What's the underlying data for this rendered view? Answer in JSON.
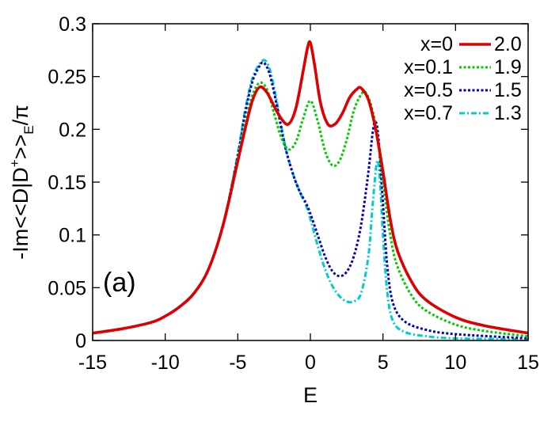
{
  "chart_data": {
    "type": "line",
    "panel_label": "(a)",
    "xlabel": "E",
    "ylabel_parts": {
      "main": "-Im<<D|D",
      "sup": "+",
      "mid": ">>",
      "sub": "E",
      "tail": "/π"
    },
    "xlim": [
      -15,
      15
    ],
    "ylim": [
      0,
      0.3
    ],
    "xticks": [
      -15,
      -10,
      -5,
      0,
      5,
      10,
      15
    ],
    "yticks": [
      0,
      0.05,
      0.1,
      0.15,
      0.2,
      0.25,
      0.3
    ],
    "ytick_labels": [
      "0",
      "0.05",
      "0.1",
      "0.15",
      "0.2",
      "0.25",
      "0.3"
    ],
    "grid": false,
    "legend_position": "top-right",
    "series": [
      {
        "name": "x=0",
        "value_label": "2.0",
        "color": "#dd0000",
        "dash": "solid",
        "points": [
          [
            -15,
            0.007
          ],
          [
            -13,
            0.011
          ],
          [
            -11,
            0.017
          ],
          [
            -10,
            0.023
          ],
          [
            -9,
            0.032
          ],
          [
            -8,
            0.045
          ],
          [
            -7,
            0.068
          ],
          [
            -6,
            0.11
          ],
          [
            -5,
            0.17
          ],
          [
            -4.5,
            0.2
          ],
          [
            -4,
            0.227
          ],
          [
            -3.5,
            0.24
          ],
          [
            -3,
            0.235
          ],
          [
            -2.5,
            0.222
          ],
          [
            -2,
            0.21
          ],
          [
            -1.5,
            0.205
          ],
          [
            -1,
            0.22
          ],
          [
            -0.5,
            0.255
          ],
          [
            -0.2,
            0.277
          ],
          [
            0,
            0.282
          ],
          [
            0.3,
            0.26
          ],
          [
            0.7,
            0.225
          ],
          [
            1.2,
            0.205
          ],
          [
            1.7,
            0.205
          ],
          [
            2.2,
            0.215
          ],
          [
            2.7,
            0.23
          ],
          [
            3.2,
            0.238
          ],
          [
            3.5,
            0.239
          ],
          [
            4,
            0.228
          ],
          [
            4.5,
            0.2
          ],
          [
            5,
            0.16
          ],
          [
            5.5,
            0.115
          ],
          [
            6,
            0.085
          ],
          [
            7,
            0.055
          ],
          [
            8,
            0.038
          ],
          [
            10,
            0.022
          ],
          [
            12,
            0.014
          ],
          [
            15,
            0.007
          ]
        ]
      },
      {
        "name": "x=0.1",
        "value_label": "1.9",
        "color": "#00cc00",
        "dash": "dotted",
        "points": [
          [
            -15,
            0.007
          ],
          [
            -13,
            0.011
          ],
          [
            -11,
            0.017
          ],
          [
            -10,
            0.023
          ],
          [
            -9,
            0.032
          ],
          [
            -8,
            0.045
          ],
          [
            -7,
            0.068
          ],
          [
            -6,
            0.11
          ],
          [
            -5,
            0.172
          ],
          [
            -4.5,
            0.205
          ],
          [
            -4,
            0.232
          ],
          [
            -3.5,
            0.244
          ],
          [
            -3,
            0.238
          ],
          [
            -2.5,
            0.215
          ],
          [
            -2,
            0.192
          ],
          [
            -1.5,
            0.181
          ],
          [
            -1,
            0.188
          ],
          [
            -0.5,
            0.21
          ],
          [
            0,
            0.227
          ],
          [
            0.5,
            0.208
          ],
          [
            1,
            0.18
          ],
          [
            1.5,
            0.166
          ],
          [
            2,
            0.17
          ],
          [
            2.5,
            0.19
          ],
          [
            3,
            0.218
          ],
          [
            3.5,
            0.233
          ],
          [
            3.8,
            0.235
          ],
          [
            4.2,
            0.222
          ],
          [
            4.6,
            0.195
          ],
          [
            5,
            0.15
          ],
          [
            5.5,
            0.1
          ],
          [
            6,
            0.07
          ],
          [
            7,
            0.042
          ],
          [
            8,
            0.028
          ],
          [
            10,
            0.015
          ],
          [
            12,
            0.009
          ],
          [
            15,
            0.004
          ]
        ]
      },
      {
        "name": "x=0.5",
        "value_label": "1.5",
        "color": "#0000bb",
        "dash": "dotted",
        "points": [
          [
            -15,
            0.007
          ],
          [
            -13,
            0.011
          ],
          [
            -11,
            0.017
          ],
          [
            -10,
            0.023
          ],
          [
            -9,
            0.032
          ],
          [
            -8,
            0.045
          ],
          [
            -7,
            0.068
          ],
          [
            -6,
            0.11
          ],
          [
            -5,
            0.175
          ],
          [
            -4.5,
            0.215
          ],
          [
            -4,
            0.245
          ],
          [
            -3.5,
            0.26
          ],
          [
            -3.2,
            0.263
          ],
          [
            -2.8,
            0.252
          ],
          [
            -2.3,
            0.222
          ],
          [
            -1.8,
            0.187
          ],
          [
            -1.3,
            0.162
          ],
          [
            -0.8,
            0.143
          ],
          [
            -0.3,
            0.13
          ],
          [
            0,
            0.12
          ],
          [
            0.5,
            0.1
          ],
          [
            1,
            0.08
          ],
          [
            1.5,
            0.066
          ],
          [
            2,
            0.061
          ],
          [
            2.5,
            0.065
          ],
          [
            3,
            0.08
          ],
          [
            3.5,
            0.11
          ],
          [
            4,
            0.16
          ],
          [
            4.3,
            0.198
          ],
          [
            4.5,
            0.207
          ],
          [
            4.7,
            0.19
          ],
          [
            5,
            0.13
          ],
          [
            5.3,
            0.07
          ],
          [
            5.7,
            0.035
          ],
          [
            6.5,
            0.018
          ],
          [
            8,
            0.01
          ],
          [
            10,
            0.006
          ],
          [
            15,
            0.002
          ]
        ]
      },
      {
        "name": "x=0.7",
        "value_label": "1.3",
        "color": "#00cccc",
        "dash": "dashdot",
        "points": [
          [
            -15,
            0.007
          ],
          [
            -13,
            0.011
          ],
          [
            -11,
            0.017
          ],
          [
            -10,
            0.023
          ],
          [
            -9,
            0.032
          ],
          [
            -8,
            0.045
          ],
          [
            -7,
            0.068
          ],
          [
            -6,
            0.11
          ],
          [
            -5,
            0.177
          ],
          [
            -4.5,
            0.218
          ],
          [
            -4,
            0.248
          ],
          [
            -3.5,
            0.262
          ],
          [
            -3.1,
            0.265
          ],
          [
            -2.7,
            0.252
          ],
          [
            -2.2,
            0.218
          ],
          [
            -1.7,
            0.182
          ],
          [
            -1.2,
            0.158
          ],
          [
            -0.7,
            0.14
          ],
          [
            -0.3,
            0.128
          ],
          [
            0,
            0.115
          ],
          [
            0.5,
            0.09
          ],
          [
            1,
            0.068
          ],
          [
            1.5,
            0.052
          ],
          [
            2,
            0.042
          ],
          [
            2.5,
            0.037
          ],
          [
            3,
            0.037
          ],
          [
            3.5,
            0.045
          ],
          [
            4,
            0.08
          ],
          [
            4.3,
            0.13
          ],
          [
            4.6,
            0.17
          ],
          [
            4.8,
            0.15
          ],
          [
            5,
            0.1
          ],
          [
            5.3,
            0.045
          ],
          [
            5.7,
            0.018
          ],
          [
            6.5,
            0.008
          ],
          [
            8,
            0.004
          ],
          [
            10,
            0.002
          ],
          [
            15,
            0.001
          ]
        ]
      }
    ]
  }
}
